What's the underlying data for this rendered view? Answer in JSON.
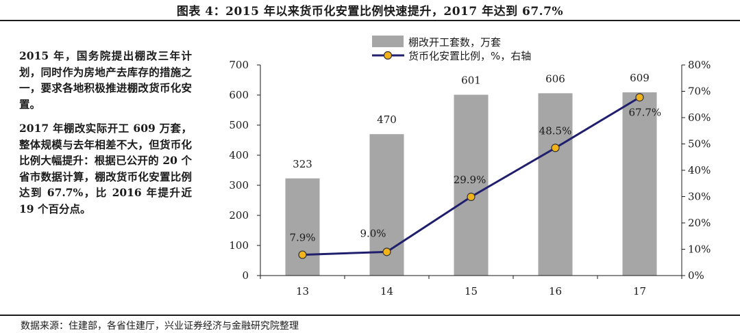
{
  "title": "图表 4：2015 年以来货币化安置比例快速提升，2017 年达到 67.7%",
  "sidebar": {
    "paragraphs": [
      "2015 年，国务院提出棚改三年计划，同时作为房地产去库存的措施之一，要求各地积极推进棚改货币化安置。",
      "2017 年棚改实际开工 609 万套，整体规模与去年相差不大，但货币化比例大幅提升：根据已公开的 20 个省市数据计算，棚改货币化安置比例达到 67.7%，比 2016 年提升近 19 个百分点。"
    ]
  },
  "source": "数据来源：住建部，各省住建厅，兴业证券经济与金融研究院整理",
  "chart_data": {
    "type": "bar",
    "categories": [
      "13",
      "14",
      "15",
      "16",
      "17"
    ],
    "series": [
      {
        "name": "棚改开工套数，万套",
        "type": "bar",
        "axis": "left",
        "values": [
          323,
          470,
          601,
          606,
          609
        ],
        "labels": [
          "323",
          "470",
          "601",
          "606",
          "609"
        ],
        "color": "#a6a6a6"
      },
      {
        "name": "货币化安置比例，%，右轴",
        "type": "line",
        "axis": "right",
        "values": [
          7.9,
          9.0,
          29.9,
          48.5,
          67.7
        ],
        "labels": [
          "7.9%",
          "9.0%",
          "29.9%",
          "48.5%",
          "67.7%"
        ],
        "color": "#1f1f6e",
        "marker_color": "#f2b21b"
      }
    ],
    "ylim": [
      0,
      700
    ],
    "yticks": [
      "0",
      "100",
      "200",
      "300",
      "400",
      "500",
      "600",
      "700"
    ],
    "y2lim": [
      0,
      80
    ],
    "y2ticks": [
      "0%",
      "10%",
      "20%",
      "30%",
      "40%",
      "50%",
      "60%",
      "70%",
      "80%"
    ],
    "legend_position": "top-center",
    "grid": false
  }
}
